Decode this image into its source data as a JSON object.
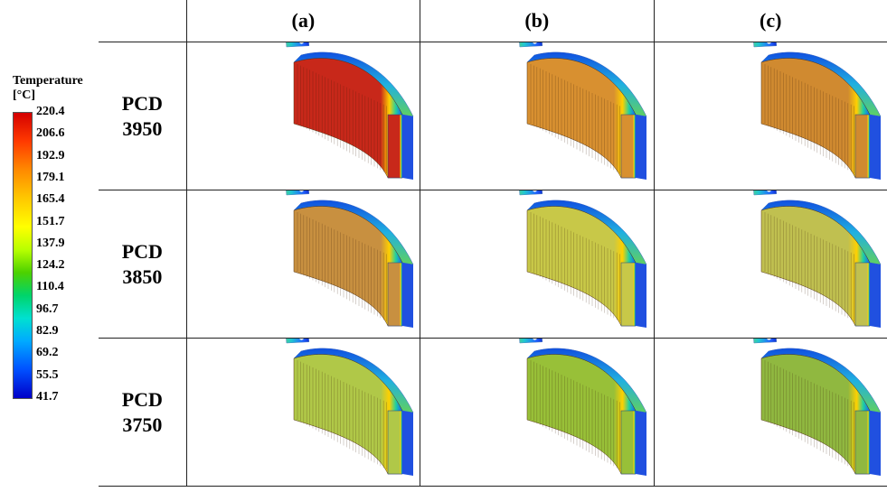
{
  "legend": {
    "title_line1": "Temperature",
    "title_line2": "[°C]",
    "ticks": [
      "220.4",
      "206.6",
      "192.9",
      "179.1",
      "165.4",
      "151.7",
      "137.9",
      "124.2",
      "110.4",
      "96.7",
      "82.9",
      "69.2",
      "55.5",
      "41.7"
    ]
  },
  "columns": [
    "(a)",
    "(b)",
    "(c)"
  ],
  "rows": [
    {
      "line1": "PCD",
      "line2": "3950",
      "cells": [
        {
          "front_hot": "#d83020",
          "side_hot": "#c8281a"
        },
        {
          "front_hot": "#e8a020",
          "side_hot": "#d89030"
        },
        {
          "front_hot": "#e89a22",
          "side_hot": "#d08a30"
        }
      ]
    },
    {
      "line1": "PCD",
      "line2": "3850",
      "cells": [
        {
          "front_hot": "#e0802a",
          "side_hot": "#c89040"
        },
        {
          "front_hot": "#c8d030",
          "side_hot": "#c8c848"
        },
        {
          "front_hot": "#b8d030",
          "side_hot": "#c0c050"
        }
      ]
    },
    {
      "line1": "PCD",
      "line2": "3750",
      "cells": [
        {
          "front_hot": "#a8d838",
          "side_hot": "#b0c848"
        },
        {
          "front_hot": "#88d030",
          "side_hot": "#98c038"
        },
        {
          "front_hot": "#80c838",
          "side_hot": "#90b840"
        }
      ]
    }
  ]
}
